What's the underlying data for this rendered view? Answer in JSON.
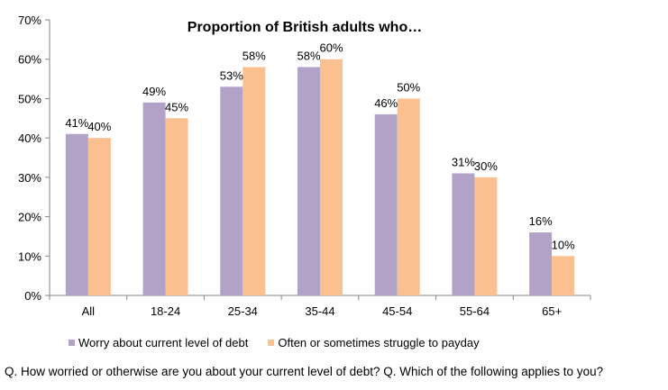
{
  "chart_data": {
    "type": "bar",
    "title": "Proportion of British adults who…",
    "categories": [
      "All",
      "18-24",
      "25-34",
      "35-44",
      "45-54",
      "55-64",
      "65+"
    ],
    "series": [
      {
        "name": "Worry about current level of debt",
        "values": [
          41,
          49,
          53,
          58,
          46,
          31,
          16
        ],
        "color": "#b3a2c7"
      },
      {
        "name": "Often or sometimes struggle to payday",
        "values": [
          40,
          45,
          58,
          60,
          50,
          30,
          10
        ],
        "color": "#fac090"
      }
    ],
    "ylim": [
      0,
      70
    ],
    "yticks": [
      "0%",
      "10%",
      "20%",
      "30%",
      "40%",
      "50%",
      "60%",
      "70%"
    ],
    "value_suffix": "%",
    "grid": false,
    "legend_position": "bottom"
  },
  "footnote": "Q. How worried or otherwise are you about your current level of debt? Q. Which of the following applies to you?"
}
